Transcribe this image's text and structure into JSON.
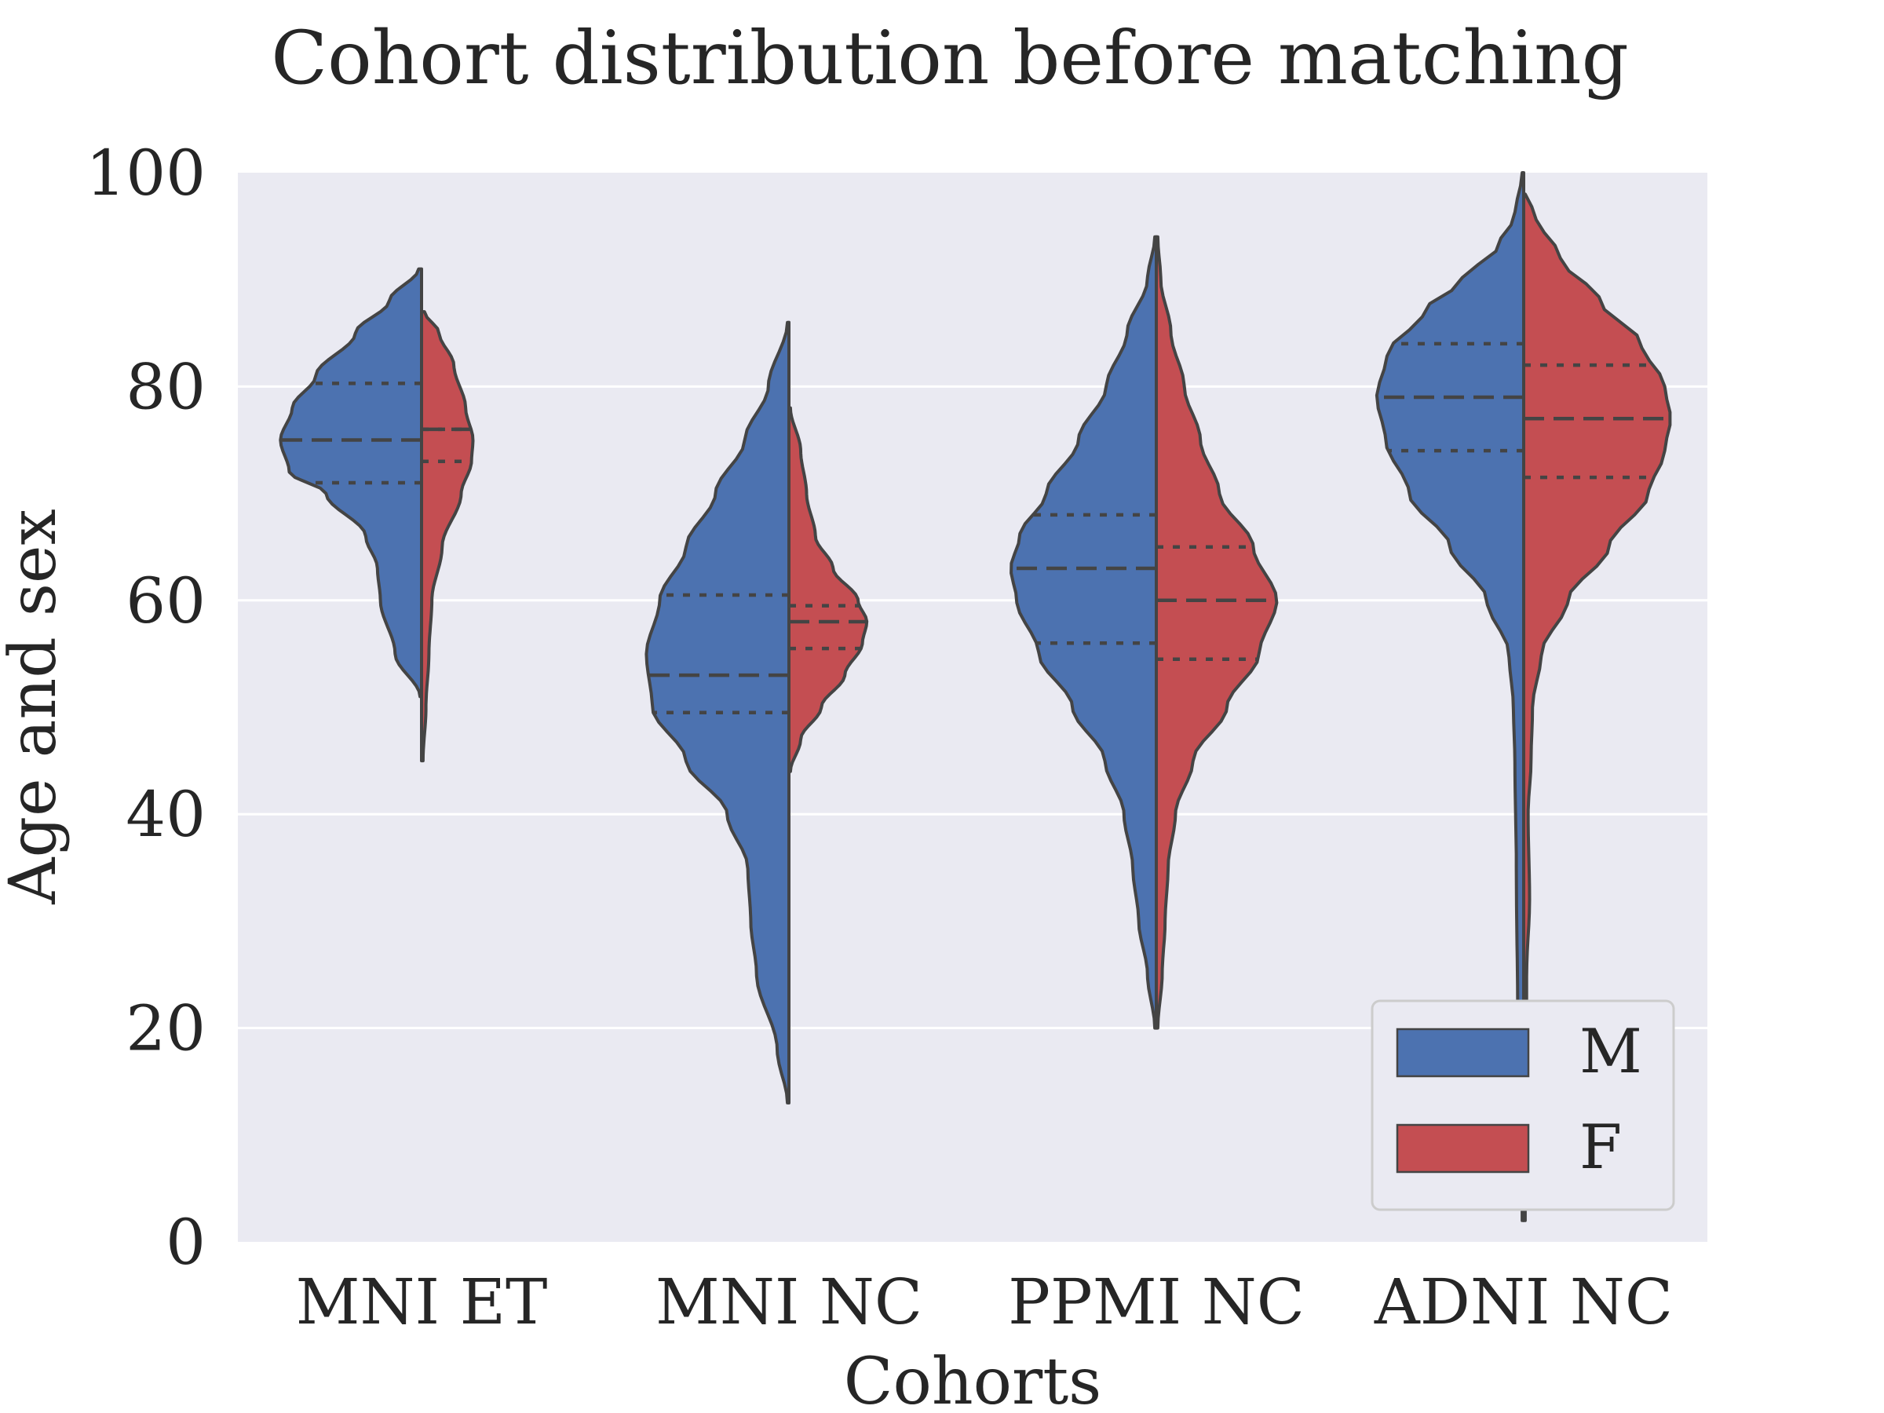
{
  "chart_data": {
    "type": "violin",
    "title": "Cohort distribution before matching",
    "xlabel": "Cohorts",
    "ylabel": "Age and sex",
    "ylim": [
      0,
      100
    ],
    "yticks": [
      "0",
      "20",
      "40",
      "60",
      "80",
      "100"
    ],
    "categories": [
      "MNI ET",
      "MNI NC",
      "PPMI NC",
      "ADNI NC"
    ],
    "split": true,
    "grid": true,
    "legend_position": "lower-right",
    "series": [
      {
        "name": "M",
        "color": "#4C72B0",
        "violins": [
          {
            "min": 51,
            "max": 91,
            "q1": 71,
            "median": 75,
            "q3": 80.3,
            "profile": [
              [
                51,
                0.01
              ],
              [
                55,
                0.18
              ],
              [
                60,
                0.28
              ],
              [
                63,
                0.3
              ],
              [
                66,
                0.38
              ],
              [
                70,
                0.65
              ],
              [
                72,
                0.9
              ],
              [
                75,
                0.96
              ],
              [
                78,
                0.88
              ],
              [
                81,
                0.72
              ],
              [
                85,
                0.45
              ],
              [
                88,
                0.22
              ],
              [
                91,
                0.02
              ]
            ]
          },
          {
            "min": 13,
            "max": 86,
            "q1": 49.5,
            "median": 53,
            "q3": 60.5,
            "profile": [
              [
                13,
                0.01
              ],
              [
                18,
                0.08
              ],
              [
                25,
                0.22
              ],
              [
                30,
                0.26
              ],
              [
                35,
                0.28
              ],
              [
                40,
                0.42
              ],
              [
                45,
                0.7
              ],
              [
                50,
                0.93
              ],
              [
                55,
                0.97
              ],
              [
                60,
                0.88
              ],
              [
                65,
                0.7
              ],
              [
                70,
                0.5
              ],
              [
                75,
                0.3
              ],
              [
                80,
                0.14
              ],
              [
                86,
                0.01
              ]
            ]
          },
          {
            "min": 20,
            "max": 94,
            "q1": 56,
            "median": 63,
            "q3": 68,
            "profile": [
              [
                20,
                0.01
              ],
              [
                25,
                0.06
              ],
              [
                30,
                0.12
              ],
              [
                35,
                0.16
              ],
              [
                40,
                0.22
              ],
              [
                45,
                0.35
              ],
              [
                50,
                0.57
              ],
              [
                55,
                0.8
              ],
              [
                60,
                0.95
              ],
              [
                63,
                0.99
              ],
              [
                66,
                0.93
              ],
              [
                70,
                0.75
              ],
              [
                75,
                0.53
              ],
              [
                80,
                0.34
              ],
              [
                85,
                0.2
              ],
              [
                90,
                0.06
              ],
              [
                94,
                0.01
              ]
            ]
          },
          {
            "min": 2,
            "max": 100,
            "q1": 74,
            "median": 79,
            "q3": 84,
            "profile": [
              [
                2,
                0.01
              ],
              [
                20,
                0.04
              ],
              [
                35,
                0.05
              ],
              [
                45,
                0.06
              ],
              [
                50,
                0.07
              ],
              [
                55,
                0.1
              ],
              [
                60,
                0.25
              ],
              [
                65,
                0.5
              ],
              [
                70,
                0.78
              ],
              [
                75,
                0.94
              ],
              [
                79,
                1.0
              ],
              [
                83,
                0.93
              ],
              [
                87,
                0.68
              ],
              [
                90,
                0.42
              ],
              [
                93,
                0.18
              ],
              [
                96,
                0.06
              ],
              [
                100,
                0.01
              ]
            ]
          }
        ]
      },
      {
        "name": "F",
        "color": "#C44E52",
        "violins": [
          {
            "min": 45,
            "max": 87,
            "q1": 73,
            "median": 76,
            "q3": 76,
            "profile": [
              [
                45,
                0.01
              ],
              [
                50,
                0.03
              ],
              [
                55,
                0.05
              ],
              [
                60,
                0.07
              ],
              [
                65,
                0.14
              ],
              [
                70,
                0.27
              ],
              [
                73,
                0.34
              ],
              [
                75,
                0.35
              ],
              [
                78,
                0.3
              ],
              [
                82,
                0.22
              ],
              [
                85,
                0.12
              ],
              [
                87,
                0.02
              ]
            ]
          },
          {
            "min": 44,
            "max": 78,
            "q1": 55.5,
            "median": 58,
            "q3": 59.5,
            "profile": [
              [
                44,
                0.01
              ],
              [
                47,
                0.08
              ],
              [
                50,
                0.22
              ],
              [
                53,
                0.38
              ],
              [
                56,
                0.5
              ],
              [
                58,
                0.53
              ],
              [
                60,
                0.47
              ],
              [
                63,
                0.3
              ],
              [
                66,
                0.18
              ],
              [
                70,
                0.12
              ],
              [
                74,
                0.08
              ],
              [
                78,
                0.01
              ]
            ]
          },
          {
            "min": 20,
            "max": 94,
            "q1": 54.5,
            "median": 60,
            "q3": 65,
            "profile": [
              [
                20,
                0.01
              ],
              [
                25,
                0.04
              ],
              [
                30,
                0.06
              ],
              [
                35,
                0.08
              ],
              [
                40,
                0.13
              ],
              [
                45,
                0.25
              ],
              [
                50,
                0.48
              ],
              [
                55,
                0.7
              ],
              [
                60,
                0.82
              ],
              [
                65,
                0.66
              ],
              [
                70,
                0.43
              ],
              [
                75,
                0.3
              ],
              [
                80,
                0.19
              ],
              [
                85,
                0.1
              ],
              [
                90,
                0.03
              ],
              [
                94,
                0.01
              ]
            ]
          },
          {
            "min": 2,
            "max": 98,
            "q1": 71.5,
            "median": 77,
            "q3": 82,
            "profile": [
              [
                2,
                0.01
              ],
              [
                25,
                0.02
              ],
              [
                32,
                0.04
              ],
              [
                40,
                0.03
              ],
              [
                45,
                0.05
              ],
              [
                50,
                0.06
              ],
              [
                55,
                0.12
              ],
              [
                60,
                0.3
              ],
              [
                65,
                0.58
              ],
              [
                70,
                0.85
              ],
              [
                74,
                0.96
              ],
              [
                77,
                1.0
              ],
              [
                80,
                0.96
              ],
              [
                84,
                0.8
              ],
              [
                88,
                0.52
              ],
              [
                92,
                0.25
              ],
              [
                96,
                0.08
              ],
              [
                98,
                0.01
              ]
            ]
          }
        ]
      }
    ]
  }
}
